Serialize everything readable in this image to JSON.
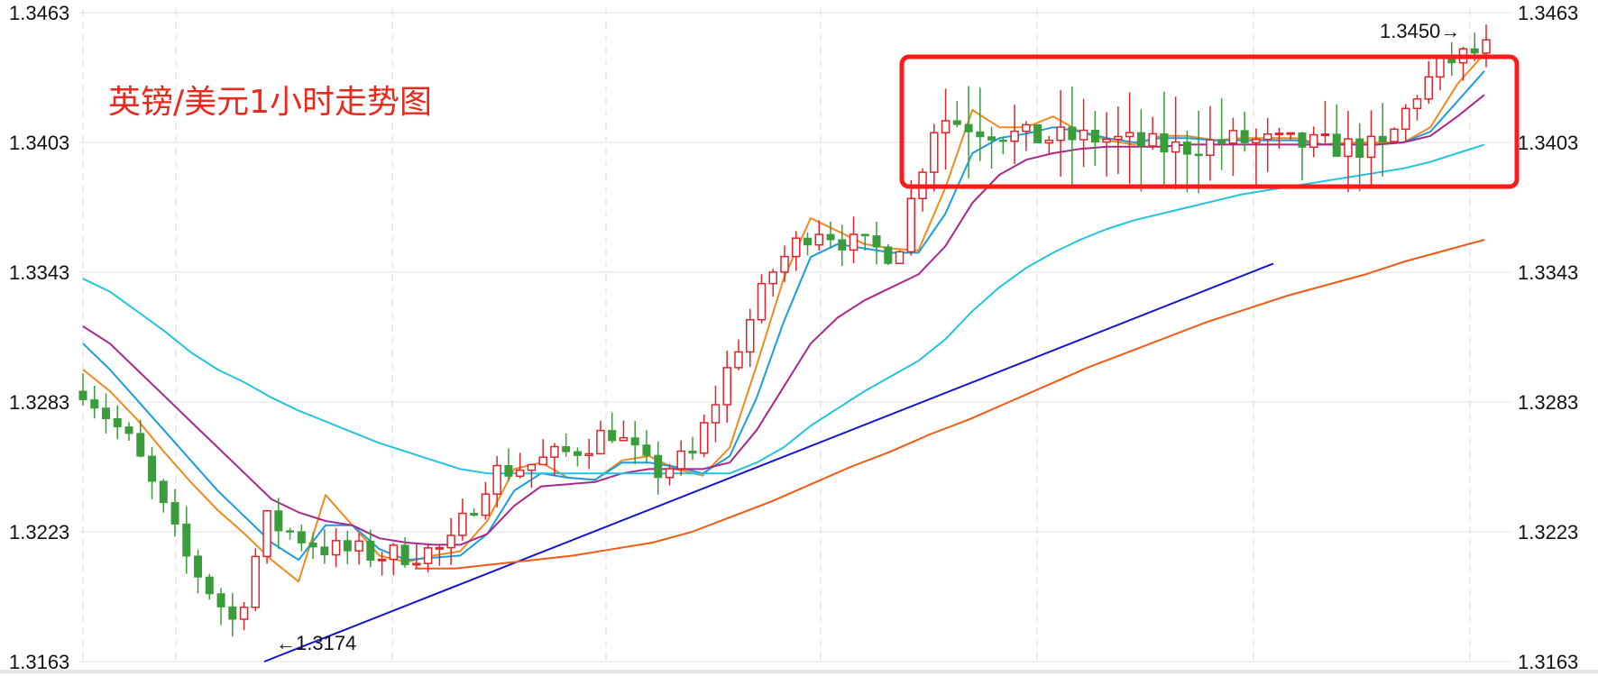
{
  "chart_data": {
    "type": "candlestick",
    "title": "英镑/美元1小时走势图",
    "y_ticks": [
      "1.3463",
      "1.3403",
      "1.3343",
      "1.3283",
      "1.3223",
      "1.3163"
    ],
    "ylim": [
      1.3163,
      1.3463
    ],
    "grid": true,
    "annotations": [
      {
        "text": "1.3450→",
        "points_to": 1.345,
        "side": "right"
      },
      {
        "text": "←1.3174",
        "points_to": 1.3174,
        "side": "left"
      }
    ],
    "range_box": {
      "low": 1.3378,
      "high": 1.343,
      "color": "#ff1a1a"
    },
    "up_color": "#e0242b",
    "down_color": "#3a9c3a",
    "moving_averages": [
      {
        "color": "#f08a1e",
        "values": [
          1.3298,
          1.3288,
          1.3275,
          1.326,
          1.3246,
          1.3233,
          1.3222,
          1.321,
          1.32,
          1.324,
          1.3226,
          1.3212,
          1.3209,
          1.3212,
          1.3214,
          1.3228,
          1.3252,
          1.3255,
          1.3248,
          1.3247,
          1.3256,
          1.3258,
          1.3252,
          1.3249,
          1.3262,
          1.33,
          1.334,
          1.3368,
          1.3362,
          1.3356,
          1.3354,
          1.3353,
          1.3382,
          1.3418,
          1.341,
          1.341,
          1.3415,
          1.3408,
          1.3404,
          1.3402,
          1.3406,
          1.3406,
          1.3404,
          1.3405,
          1.3405,
          1.3405,
          1.3402,
          1.3403,
          1.3403,
          1.3403,
          1.341,
          1.343,
          1.3444
        ]
      },
      {
        "color": "#1a9de0",
        "values": [
          1.331,
          1.3298,
          1.3284,
          1.327,
          1.3256,
          1.3242,
          1.323,
          1.3218,
          1.321,
          1.3226,
          1.3226,
          1.3215,
          1.321,
          1.3211,
          1.3212,
          1.3222,
          1.3242,
          1.325,
          1.3248,
          1.3247,
          1.3255,
          1.3255,
          1.3253,
          1.325,
          1.3258,
          1.3285,
          1.332,
          1.335,
          1.3356,
          1.3354,
          1.3352,
          1.3352,
          1.337,
          1.3398,
          1.3405,
          1.3407,
          1.341,
          1.3408,
          1.3405,
          1.3403,
          1.3405,
          1.3405,
          1.3404,
          1.3404,
          1.3404,
          1.3404,
          1.3402,
          1.3402,
          1.3402,
          1.3403,
          1.3408,
          1.3422,
          1.3436
        ]
      },
      {
        "color": "#a8288c",
        "values": [
          1.3318,
          1.331,
          1.3298,
          1.3286,
          1.3274,
          1.3262,
          1.325,
          1.3238,
          1.3232,
          1.3228,
          1.3226,
          1.322,
          1.3218,
          1.3217,
          1.3217,
          1.3222,
          1.3235,
          1.3244,
          1.3245,
          1.3246,
          1.325,
          1.3252,
          1.3252,
          1.3252,
          1.3255,
          1.327,
          1.329,
          1.331,
          1.3322,
          1.333,
          1.3336,
          1.3342,
          1.3355,
          1.3375,
          1.3388,
          1.3395,
          1.3398,
          1.34,
          1.3401,
          1.3401,
          1.3401,
          1.3402,
          1.3402,
          1.3402,
          1.3402,
          1.3402,
          1.3402,
          1.3402,
          1.3402,
          1.3403,
          1.3406,
          1.3415,
          1.3425
        ]
      },
      {
        "color": "#22c3e0",
        "values": [
          1.334,
          1.3334,
          1.3325,
          1.3316,
          1.3306,
          1.3298,
          1.3292,
          1.3285,
          1.3279,
          1.3274,
          1.3269,
          1.3264,
          1.326,
          1.3256,
          1.3252,
          1.325,
          1.325,
          1.325,
          1.325,
          1.325,
          1.325,
          1.325,
          1.325,
          1.325,
          1.325,
          1.3255,
          1.3262,
          1.3272,
          1.328,
          1.3288,
          1.3295,
          1.3302,
          1.3312,
          1.3325,
          1.3336,
          1.3345,
          1.3352,
          1.3358,
          1.3363,
          1.3367,
          1.337,
          1.3373,
          1.3376,
          1.3379,
          1.3381,
          1.3383,
          1.3385,
          1.3387,
          1.3389,
          1.3391,
          1.3394,
          1.3398,
          1.3402
        ]
      },
      {
        "color": "#f25a12",
        "values": [
          1.3206,
          1.3206,
          1.3208,
          1.321,
          1.3212,
          1.3215,
          1.3218,
          1.3223,
          1.323,
          1.3237,
          1.3245,
          1.3253,
          1.326,
          1.3268,
          1.3275,
          1.3283,
          1.3291,
          1.3299,
          1.3306,
          1.3313,
          1.332,
          1.3326,
          1.3332,
          1.3337,
          1.3342,
          1.3348,
          1.3353,
          1.3358
        ]
      }
    ],
    "trendline": {
      "color": "#1515d0"
    }
  }
}
